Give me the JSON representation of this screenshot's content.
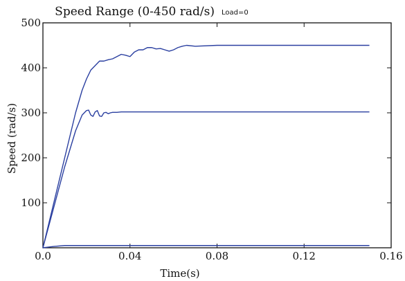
{
  "chart_data": {
    "type": "line",
    "title": "Speed Range (0-450 rad/s)",
    "subtitle": "Load=0",
    "xlabel": "Time(s)",
    "ylabel": "Speed (rad/s)",
    "xlim": [
      0,
      0.16
    ],
    "ylim": [
      0,
      500
    ],
    "xticks": [
      0.0,
      0.04,
      0.08,
      0.12,
      0.16
    ],
    "xtick_labels": [
      "0.0",
      "0.04",
      "0.08",
      "0.12",
      "0.16"
    ],
    "yticks": [
      100,
      200,
      300,
      400,
      500
    ],
    "ytick_labels": [
      "100",
      "200",
      "300",
      "400",
      "500"
    ],
    "grid": false,
    "line_color": "#2a3fa0",
    "series": [
      {
        "x": [
          0,
          0.005,
          0.01,
          0.015,
          0.018,
          0.02,
          0.022,
          0.024,
          0.026,
          0.028,
          0.03,
          0.032,
          0.034,
          0.036,
          0.038,
          0.04,
          0.042,
          0.044,
          0.046,
          0.048,
          0.05,
          0.052,
          0.054,
          0.056,
          0.058,
          0.06,
          0.062,
          0.064,
          0.066,
          0.07,
          0.08,
          0.1,
          0.12,
          0.15
        ],
        "y": [
          0,
          100,
          200,
          300,
          350,
          375,
          395,
          405,
          415,
          415,
          418,
          420,
          425,
          430,
          428,
          425,
          435,
          440,
          440,
          445,
          445,
          442,
          443,
          440,
          437,
          440,
          445,
          448,
          450,
          448,
          450,
          450,
          450,
          450
        ]
      },
      {
        "x": [
          0,
          0.005,
          0.01,
          0.015,
          0.018,
          0.02,
          0.021,
          0.022,
          0.023,
          0.024,
          0.025,
          0.026,
          0.027,
          0.028,
          0.029,
          0.03,
          0.031,
          0.032,
          0.034,
          0.036,
          0.04,
          0.06,
          0.1,
          0.15
        ],
        "y": [
          0,
          90,
          180,
          260,
          295,
          305,
          306,
          295,
          292,
          302,
          305,
          293,
          292,
          300,
          301,
          298,
          300,
          301,
          301,
          302,
          302,
          302,
          302,
          302
        ]
      },
      {
        "x": [
          0,
          0.005,
          0.01,
          0.02,
          0.05,
          0.1,
          0.15
        ],
        "y": [
          0,
          3,
          5,
          5,
          5,
          5,
          5
        ]
      }
    ]
  }
}
